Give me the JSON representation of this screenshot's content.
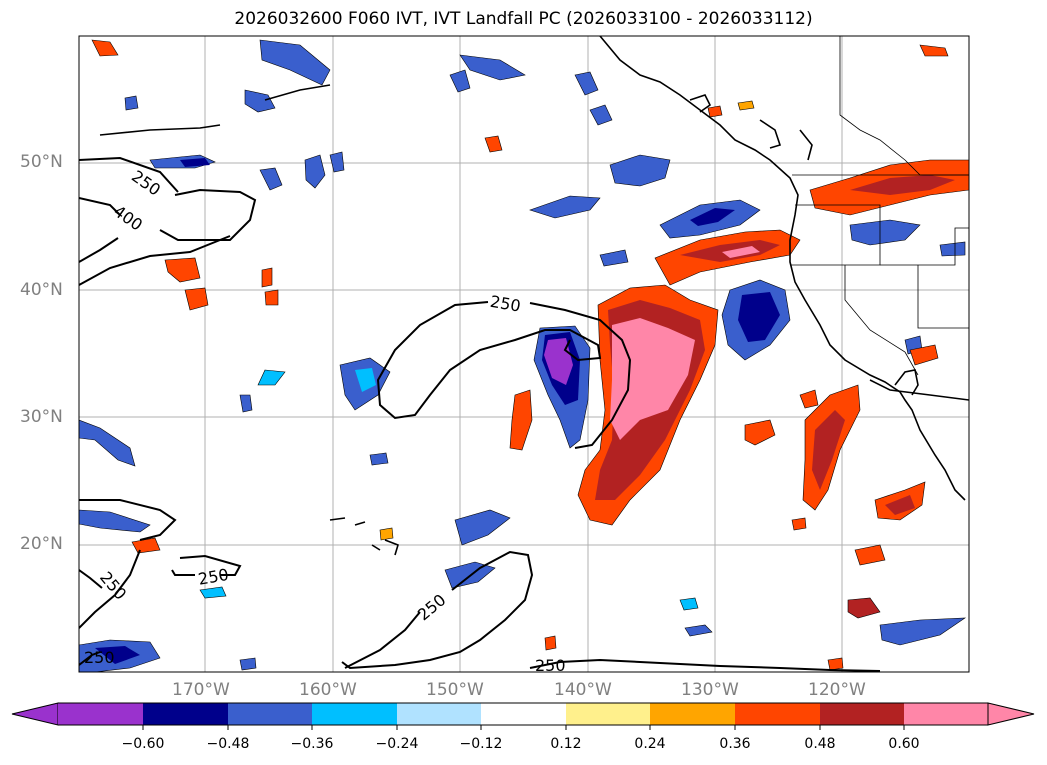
{
  "title": "2026032600 F060 IVT, IVT Landfall PC (2026033100 - 2026033112)",
  "lon_ticks": [
    "170°W",
    "160°W",
    "150°W",
    "140°W",
    "130°W",
    "120°W"
  ],
  "lat_ticks": [
    "50°N",
    "40°N",
    "30°N",
    "20°N"
  ],
  "contour_labels": [
    "250",
    "400",
    "250",
    "250",
    "250",
    "250",
    "250",
    "250"
  ],
  "colorbar": {
    "ticks": [
      "−0.60",
      "−0.48",
      "−0.36",
      "−0.24",
      "−0.12",
      "0.12",
      "0.24",
      "0.36",
      "0.48",
      "0.60"
    ],
    "colors": [
      "#9a32cd",
      "#00008b",
      "#3a5fcd",
      "#00bfff",
      "#b0e2ff",
      "#ffffff",
      "#fff08c",
      "#ffa500",
      "#ff4500",
      "#b22222",
      "#ff86a8"
    ]
  }
}
